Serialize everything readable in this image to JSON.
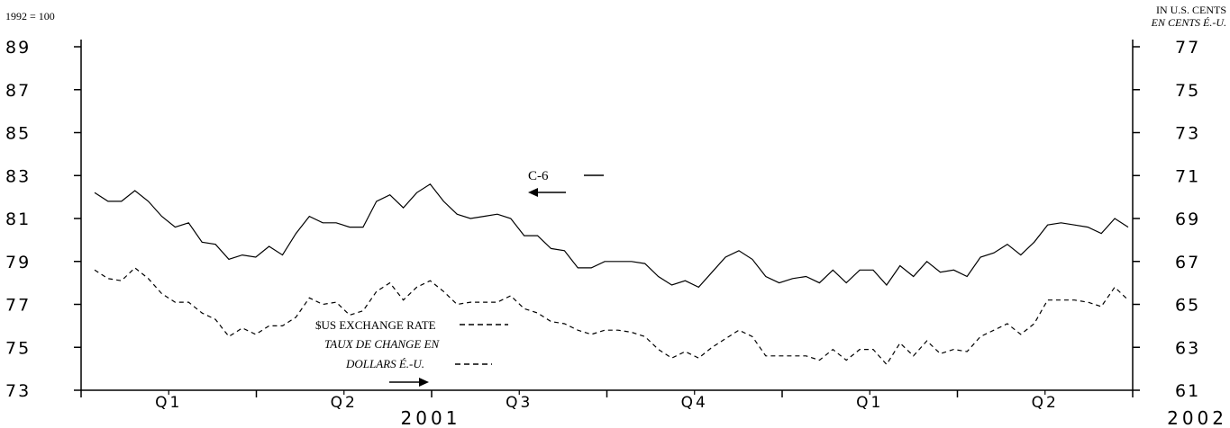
{
  "chart_data": {
    "type": "line",
    "left_unit": "1992 = 100",
    "right_unit_en": "IN U.S. CENTS",
    "right_unit_fr": "EN CENTS É.-U.",
    "left_axis": {
      "ylim": [
        73,
        89
      ],
      "ticks": [
        "89",
        "87",
        "85",
        "83",
        "81",
        "79",
        "77",
        "75",
        "73"
      ]
    },
    "right_axis": {
      "ylim": [
        61,
        77
      ],
      "ticks": [
        "77",
        "75",
        "73",
        "71",
        "69",
        "67",
        "65",
        "63",
        "61"
      ]
    },
    "quarters": [
      "Q1",
      "Q2",
      "Q3",
      "Q4",
      "Q1",
      "Q2"
    ],
    "years": [
      "2001",
      "2002"
    ],
    "series": [
      {
        "name": "C-6",
        "axis": "left",
        "style": "solid",
        "values": [
          82.2,
          81.8,
          81.8,
          82.3,
          81.8,
          81.1,
          80.6,
          80.8,
          79.9,
          79.8,
          79.1,
          79.3,
          79.2,
          79.7,
          79.3,
          80.3,
          81.1,
          80.8,
          80.8,
          80.6,
          80.6,
          81.8,
          82.1,
          81.5,
          82.2,
          82.6,
          81.8,
          81.2,
          81.0,
          81.1,
          81.2,
          81.0,
          80.2,
          80.2,
          79.6,
          79.5,
          78.7,
          78.7,
          79.0,
          79.0,
          79.0,
          78.9,
          78.3,
          77.9,
          78.1,
          77.8,
          78.5,
          79.2,
          79.5,
          79.1,
          78.3,
          78.0,
          78.2,
          78.3,
          78.0,
          78.6,
          78.0,
          78.6,
          78.6,
          77.9,
          78.8,
          78.3,
          79.0,
          78.5,
          78.6,
          78.3,
          79.2,
          79.4,
          79.8,
          79.3,
          79.9,
          80.7,
          80.8,
          80.7,
          80.6,
          80.3,
          81.0,
          80.6
        ]
      },
      {
        "name": "$US EXCHANGE RATE",
        "name_fr": "TAUX DE CHANGE EN DOLLARS É.-U.",
        "axis": "right",
        "style": "dashed",
        "values": [
          66.6,
          66.2,
          66.1,
          66.7,
          66.2,
          65.5,
          65.1,
          65.1,
          64.6,
          64.3,
          63.5,
          63.9,
          63.6,
          64.0,
          64.0,
          64.4,
          65.3,
          65.0,
          65.1,
          64.5,
          64.7,
          65.6,
          66.0,
          65.2,
          65.8,
          66.1,
          65.6,
          65.0,
          65.1,
          65.1,
          65.1,
          65.4,
          64.8,
          64.6,
          64.2,
          64.1,
          63.8,
          63.6,
          63.8,
          63.8,
          63.7,
          63.5,
          62.9,
          62.5,
          62.8,
          62.5,
          63.0,
          63.4,
          63.8,
          63.5,
          62.6,
          62.6,
          62.6,
          62.6,
          62.4,
          62.9,
          62.4,
          62.9,
          62.9,
          62.2,
          63.2,
          62.6,
          63.3,
          62.7,
          62.9,
          62.8,
          63.5,
          63.8,
          64.1,
          63.6,
          64.1,
          65.2,
          65.2,
          65.2,
          65.1,
          64.9,
          65.8,
          65.2
        ]
      }
    ],
    "legend": {
      "c6_label": "C-6",
      "usd_label_1": "$US EXCHANGE RATE",
      "usd_label_2": "TAUX DE CHANGE EN",
      "usd_label_3": "DOLLARS É.-U."
    }
  }
}
